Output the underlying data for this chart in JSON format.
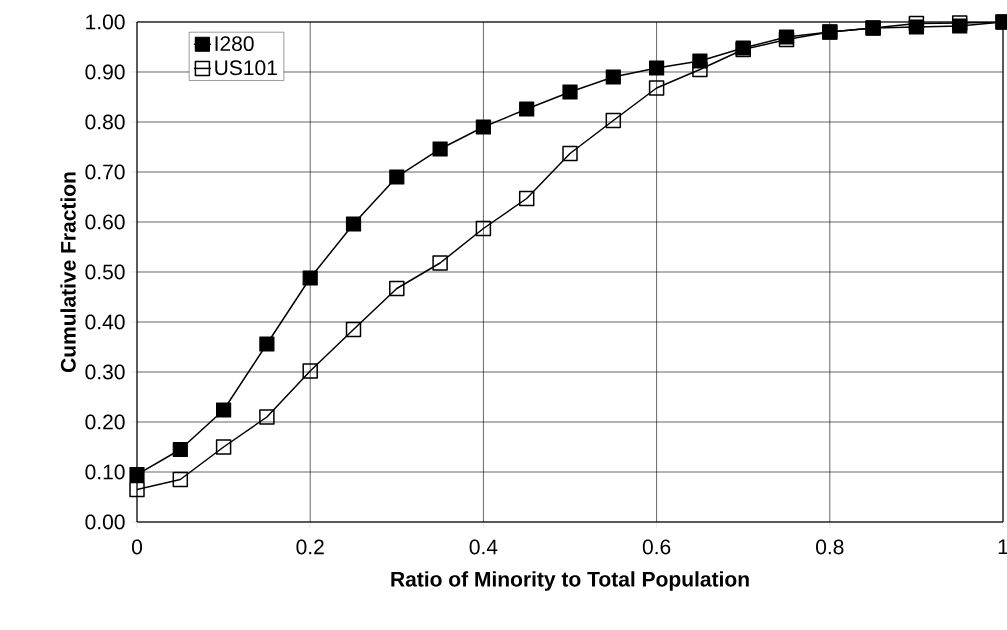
{
  "chart_data": {
    "type": "line",
    "xlabel": "Ratio of Minority to Total Population",
    "ylabel": "Cumulative Fraction",
    "x": [
      0,
      0.05,
      0.1,
      0.15,
      0.2,
      0.25,
      0.3,
      0.35,
      0.4,
      0.45,
      0.5,
      0.55,
      0.6,
      0.65,
      0.7,
      0.75,
      0.8,
      0.85,
      0.9,
      0.95,
      1
    ],
    "series": [
      {
        "name": "I280",
        "color": "#000000",
        "marker": "square",
        "values": [
          0.095,
          0.145,
          0.224,
          0.356,
          0.488,
          0.596,
          0.69,
          0.746,
          0.79,
          0.826,
          0.86,
          0.89,
          0.908,
          0.922,
          0.948,
          0.97,
          0.98,
          0.988,
          0.99,
          0.992,
          1.0
        ]
      },
      {
        "name": "US101",
        "color": "#000000",
        "marker": "square_open",
        "values": [
          0.065,
          0.085,
          0.15,
          0.21,
          0.302,
          0.385,
          0.467,
          0.518,
          0.587,
          0.647,
          0.737,
          0.803,
          0.868,
          0.905,
          0.945,
          0.965,
          0.98,
          0.988,
          0.997,
          0.998,
          1.0
        ]
      }
    ],
    "xlim": [
      0,
      1
    ],
    "xticks": [
      0,
      0.2,
      0.4,
      0.6,
      0.8,
      1
    ],
    "ylim": [
      0,
      1
    ],
    "yticks": [
      {
        "value": 0,
        "label": "0.00"
      },
      {
        "value": 0.1,
        "label": "0.10"
      },
      {
        "value": 0.2,
        "label": "0.20"
      },
      {
        "value": 0.3,
        "label": "0.30"
      },
      {
        "value": 0.4,
        "label": "0.40"
      },
      {
        "value": 0.5,
        "label": "0.50"
      },
      {
        "value": 0.6,
        "label": "0.60"
      },
      {
        "value": 0.7,
        "label": "0.70"
      },
      {
        "value": 0.8,
        "label": "0.80"
      },
      {
        "value": 0.9,
        "label": "0.90"
      },
      {
        "value": 1,
        "label": "1.00"
      }
    ],
    "grid": true,
    "legend": "top left",
    "line_style": "solid"
  }
}
